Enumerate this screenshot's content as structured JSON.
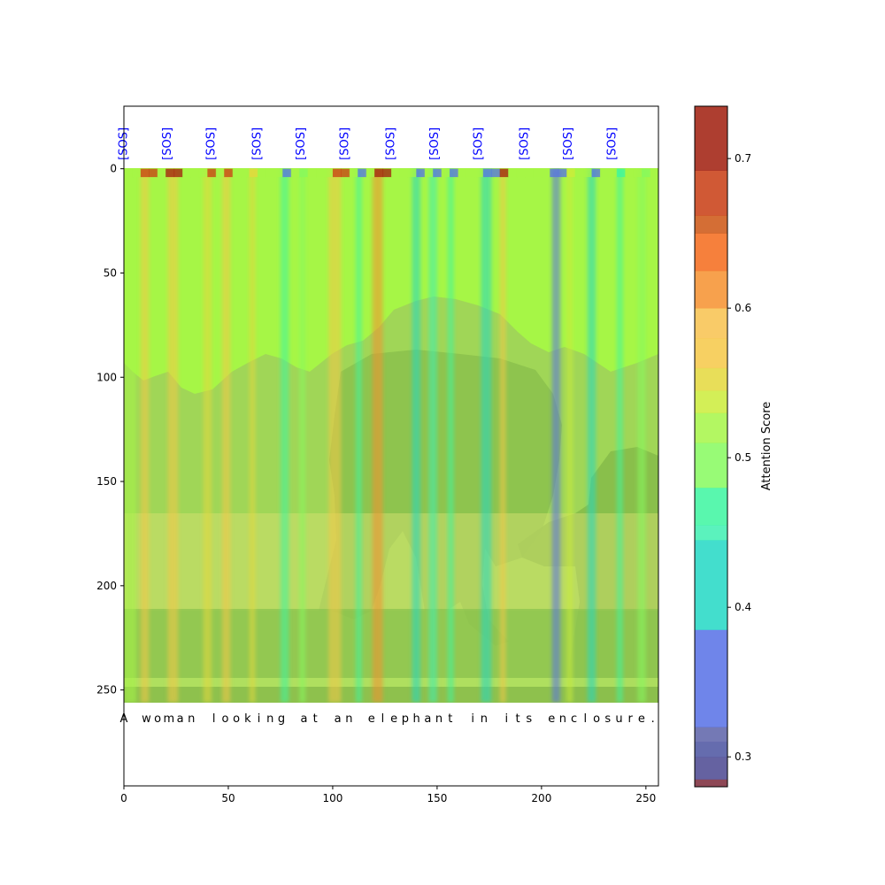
{
  "chart_data": {
    "type": "heatmap",
    "title": "",
    "xlabel": "",
    "ylabel": "",
    "xlim": [
      0,
      256
    ],
    "ylim": [
      -30,
      296
    ],
    "x_ticks": [
      0,
      50,
      100,
      150,
      200,
      250
    ],
    "y_ticks": [
      0,
      50,
      100,
      150,
      200,
      250
    ],
    "image_extent": {
      "x": [
        0,
        256
      ],
      "y": [
        0,
        256
      ]
    },
    "token_labels": [
      "[SOS]",
      "[SOS]",
      "[SOS]",
      "[SOS]",
      "[SOS]",
      "[SOS]",
      "[SOS]",
      "[SOS]",
      "[SOS]",
      "[SOS]",
      "[SOS]",
      "[SOS]"
    ],
    "token_positions": [
      0,
      21,
      42,
      64,
      85,
      106,
      128,
      149,
      170,
      192,
      213,
      234
    ],
    "token_label_color": "#0000ff",
    "caption_chars": [
      "A",
      " ",
      "w",
      "o",
      "m",
      "a",
      "n",
      " ",
      "l",
      "o",
      "o",
      "k",
      "i",
      "n",
      "g",
      " ",
      "a",
      "t",
      " ",
      "a",
      "n",
      " ",
      "e",
      "l",
      "e",
      "p",
      "h",
      "a",
      "n",
      "t",
      " ",
      "i",
      "n",
      " ",
      "i",
      "t",
      "s",
      " ",
      "e",
      "n",
      "c",
      "l",
      "o",
      "s",
      "u",
      "r",
      "e",
      "."
    ],
    "caption_y": 264,
    "base_attention": 0.52,
    "column_attention": [
      {
        "x": 0,
        "w": 6,
        "v": 0.53
      },
      {
        "x": 8,
        "w": 4,
        "v": 0.57
      },
      {
        "x": 21,
        "w": 5,
        "v": 0.58
      },
      {
        "x": 38,
        "w": 4,
        "v": 0.56
      },
      {
        "x": 47,
        "w": 4,
        "v": 0.57
      },
      {
        "x": 60,
        "w": 3,
        "v": 0.55
      },
      {
        "x": 75,
        "w": 4,
        "v": 0.46
      },
      {
        "x": 84,
        "w": 3,
        "v": 0.49
      },
      {
        "x": 98,
        "w": 6,
        "v": 0.57
      },
      {
        "x": 111,
        "w": 3,
        "v": 0.46
      },
      {
        "x": 119,
        "w": 5,
        "v": 0.62
      },
      {
        "x": 138,
        "w": 4,
        "v": 0.42
      },
      {
        "x": 146,
        "w": 4,
        "v": 0.45
      },
      {
        "x": 155,
        "w": 3,
        "v": 0.47
      },
      {
        "x": 171,
        "w": 5,
        "v": 0.41
      },
      {
        "x": 180,
        "w": 3,
        "v": 0.58
      },
      {
        "x": 205,
        "w": 4,
        "v": 0.37
      },
      {
        "x": 212,
        "w": 3,
        "v": 0.54
      },
      {
        "x": 222,
        "w": 4,
        "v": 0.44
      },
      {
        "x": 236,
        "w": 3,
        "v": 0.48
      },
      {
        "x": 246,
        "w": 4,
        "v": 0.5
      }
    ],
    "colorbar": {
      "label": "Attention Score",
      "vmin": 0.28,
      "vmax": 0.735,
      "ticks": [
        0.3,
        0.4,
        0.5,
        0.6,
        0.7
      ],
      "bands": [
        {
          "from": 0.28,
          "to": 0.285,
          "color": "#7a2838"
        },
        {
          "from": 0.285,
          "to": 0.3,
          "color": "#4a4690"
        },
        {
          "from": 0.3,
          "to": 0.31,
          "color": "#4a52a0"
        },
        {
          "from": 0.31,
          "to": 0.32,
          "color": "#5c62a8"
        },
        {
          "from": 0.32,
          "to": 0.385,
          "color": "#5670e6"
        },
        {
          "from": 0.385,
          "to": 0.445,
          "color": "#22d8c4"
        },
        {
          "from": 0.445,
          "to": 0.455,
          "color": "#3ef0b2"
        },
        {
          "from": 0.455,
          "to": 0.48,
          "color": "#3cf6a0"
        },
        {
          "from": 0.48,
          "to": 0.51,
          "color": "#86fa5e"
        },
        {
          "from": 0.51,
          "to": 0.53,
          "color": "#a6f646"
        },
        {
          "from": 0.53,
          "to": 0.545,
          "color": "#cbec3a"
        },
        {
          "from": 0.545,
          "to": 0.56,
          "color": "#e4d83c"
        },
        {
          "from": 0.56,
          "to": 0.58,
          "color": "#f6c846"
        },
        {
          "from": 0.58,
          "to": 0.6,
          "color": "#f8c24e"
        },
        {
          "from": 0.6,
          "to": 0.625,
          "color": "#f6902e"
        },
        {
          "from": 0.625,
          "to": 0.65,
          "color": "#f46a1a"
        },
        {
          "from": 0.65,
          "to": 0.662,
          "color": "#cc5512"
        },
        {
          "from": 0.662,
          "to": 0.692,
          "color": "#c83c12"
        },
        {
          "from": 0.692,
          "to": 0.735,
          "color": "#a01c0c"
        }
      ]
    }
  }
}
